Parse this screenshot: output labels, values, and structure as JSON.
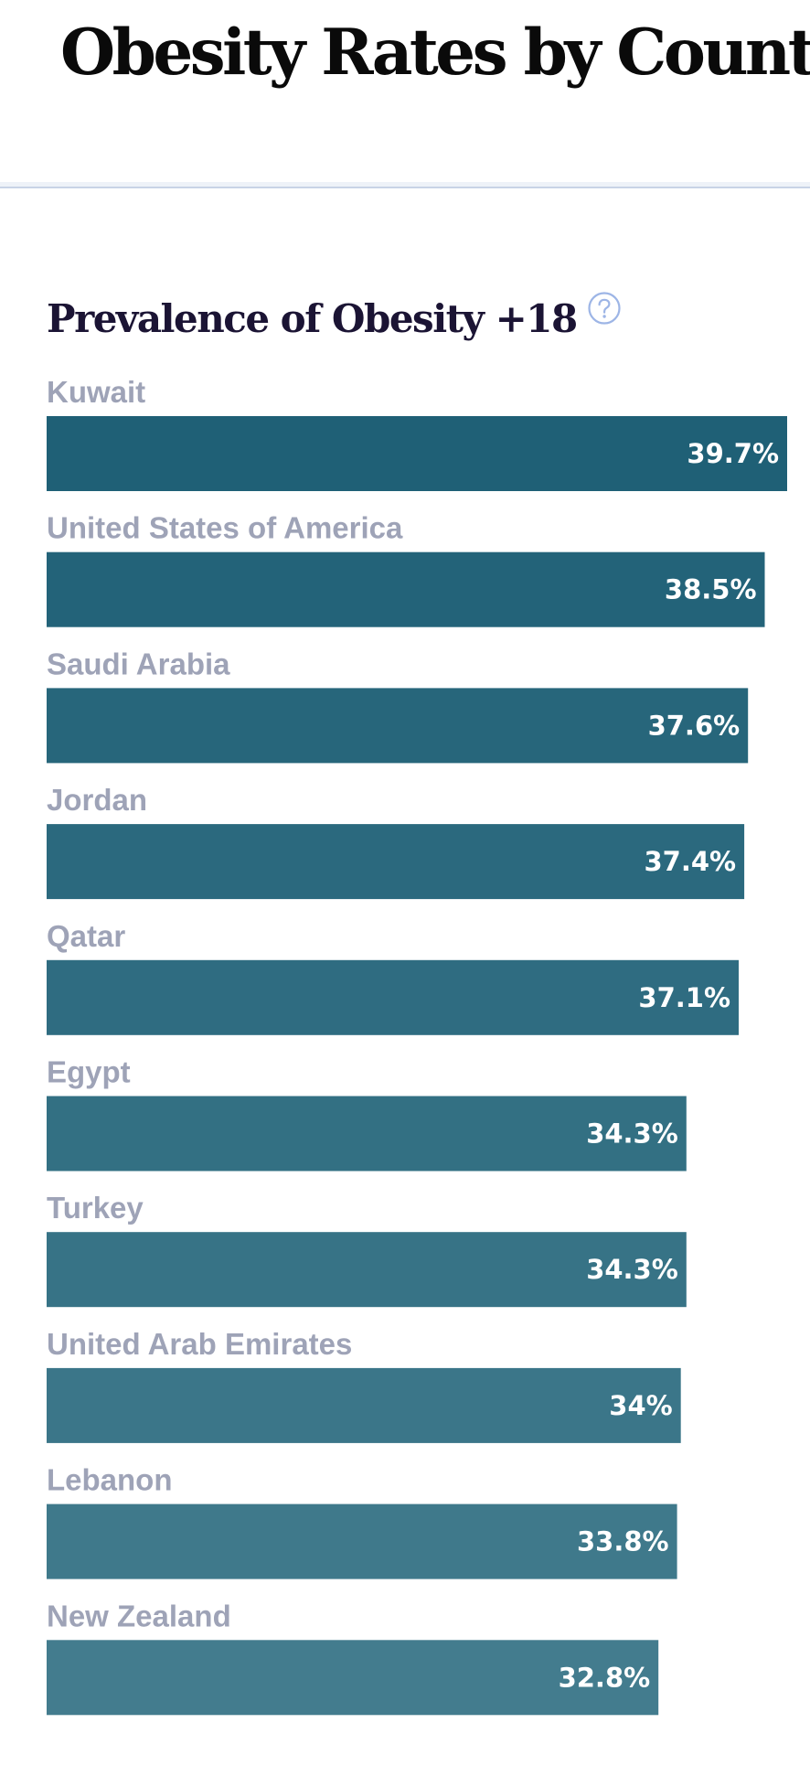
{
  "page": {
    "title": "Obesity Rates by Country"
  },
  "help_icon": "question-circle-icon",
  "colors": {
    "bar_start": "#1f6076",
    "bar_end": "#437c8e",
    "category_label": "#9ea3b7",
    "value_label": "#ffffff",
    "title": "#1b1434",
    "help_icon": "#9db5e6"
  },
  "chart_data": {
    "type": "bar",
    "orientation": "horizontal",
    "title": "Prevalence of Obesity +18",
    "categories": [
      "Kuwait",
      "United States of America",
      "Saudi Arabia",
      "Jordan",
      "Qatar",
      "Egypt",
      "Turkey",
      "United Arab Emirates",
      "Lebanon",
      "New Zealand"
    ],
    "values": [
      39.7,
      38.5,
      37.6,
      37.4,
      37.1,
      34.3,
      34.3,
      34,
      33.8,
      32.8
    ],
    "value_labels": [
      "39.7%",
      "38.5%",
      "37.6%",
      "37.4%",
      "37.1%",
      "34.3%",
      "34.3%",
      "34%",
      "33.8%",
      "32.8%"
    ],
    "unit": "%",
    "xlim": [
      0,
      39.7
    ],
    "grid": false,
    "legend": "none"
  }
}
